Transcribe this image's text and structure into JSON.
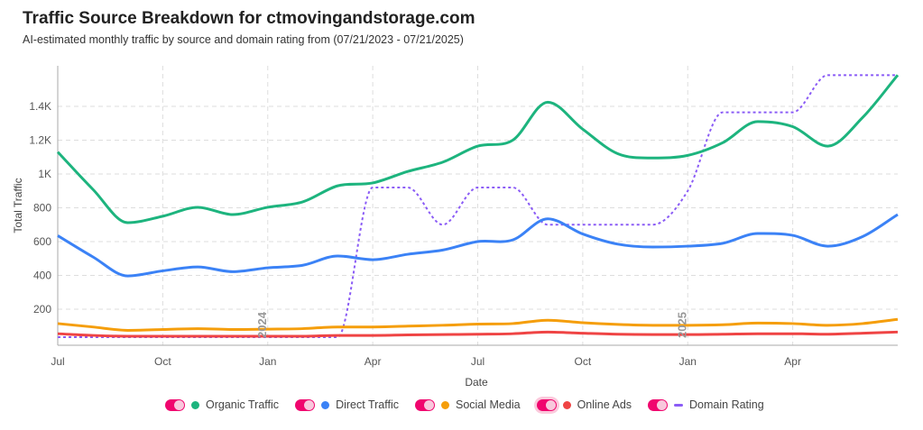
{
  "chart_data": {
    "type": "line",
    "title": "Traffic Source Breakdown for ctmovingandstorage.com",
    "subtitle": "AI-estimated monthly traffic by source and domain rating from (07/21/2023 - 07/21/2025)",
    "xlabel": "Date",
    "ylabel": "Total Traffic",
    "ylim": [
      0,
      1640
    ],
    "yticks": [
      {
        "v": 200,
        "l": "200"
      },
      {
        "v": 400,
        "l": "400"
      },
      {
        "v": 600,
        "l": "600"
      },
      {
        "v": 800,
        "l": "800"
      },
      {
        "v": 1000,
        "l": "1K"
      },
      {
        "v": 1200,
        "l": "1.2K"
      },
      {
        "v": 1400,
        "l": "1.4K"
      }
    ],
    "xticks": [
      {
        "i": 0,
        "l": "Jul"
      },
      {
        "i": 3,
        "l": "Oct"
      },
      {
        "i": 6,
        "l": "Jan"
      },
      {
        "i": 9,
        "l": "Apr"
      },
      {
        "i": 12,
        "l": "Jul"
      },
      {
        "i": 15,
        "l": "Oct"
      },
      {
        "i": 18,
        "l": "Jan"
      },
      {
        "i": 21,
        "l": "Apr"
      }
    ],
    "annotations": [
      {
        "i": 6,
        "l": "2024"
      },
      {
        "i": 18,
        "l": "2025"
      }
    ],
    "x_months": [
      "2023-07",
      "2023-08",
      "2023-09",
      "2023-10",
      "2023-11",
      "2023-12",
      "2024-01",
      "2024-02",
      "2024-03",
      "2024-04",
      "2024-05",
      "2024-06",
      "2024-07",
      "2024-08",
      "2024-09",
      "2024-10",
      "2024-11",
      "2024-12",
      "2025-01",
      "2025-02",
      "2025-03",
      "2025-04",
      "2025-05",
      "2025-06",
      "2025-07"
    ],
    "series": [
      {
        "name": "Organic Traffic",
        "color": "#1db47e",
        "dashed": false,
        "values": [
          1130,
          910,
          712,
          750,
          803,
          760,
          803,
          835,
          930,
          947,
          1015,
          1070,
          1165,
          1200,
          1425,
          1265,
          1120,
          1095,
          1110,
          1185,
          1310,
          1280,
          1165,
          1335,
          1585
        ]
      },
      {
        "name": "Direct Traffic",
        "color": "#3b82f6",
        "dashed": false,
        "values": [
          635,
          510,
          397,
          427,
          450,
          422,
          445,
          460,
          515,
          493,
          525,
          550,
          600,
          610,
          735,
          645,
          585,
          568,
          573,
          590,
          648,
          637,
          573,
          630,
          760
        ]
      },
      {
        "name": "Social Media",
        "color": "#f59e0b",
        "dashed": false,
        "values": [
          115,
          95,
          75,
          80,
          85,
          80,
          82,
          85,
          95,
          95,
          100,
          105,
          112,
          115,
          135,
          120,
          110,
          105,
          105,
          108,
          118,
          115,
          105,
          115,
          140
        ]
      },
      {
        "name": "Online Ads",
        "color": "#ef4444",
        "dashed": false,
        "values": [
          55,
          45,
          40,
          40,
          40,
          40,
          40,
          40,
          45,
          45,
          48,
          50,
          52,
          55,
          65,
          58,
          52,
          50,
          50,
          52,
          55,
          55,
          52,
          58,
          65
        ]
      },
      {
        "name": "Domain Rating",
        "color": "#8b5cf6",
        "dashed": true,
        "values": [
          35,
          35,
          35,
          35,
          35,
          35,
          35,
          35,
          35,
          920,
          920,
          700,
          920,
          920,
          700,
          700,
          700,
          700,
          900,
          1365,
          1365,
          1365,
          1585,
          1585,
          1585
        ]
      }
    ],
    "legend_position": "bottom"
  }
}
